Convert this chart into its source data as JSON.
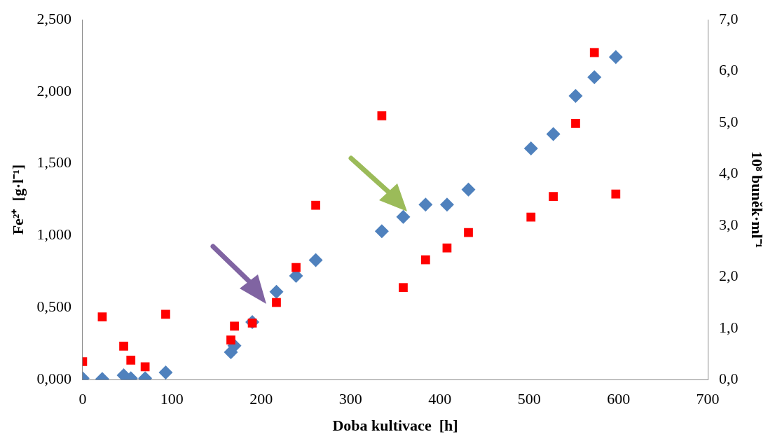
{
  "chart_data": {
    "type": "scatter",
    "xlabel": "Doba kultivace  [h]",
    "ylabel": "Fe²⁺  [g·l⁻¹]",
    "y2label": "10⁸ buněk·ml⁻¹",
    "xlim": [
      0,
      700
    ],
    "xticks": [
      0,
      100,
      200,
      300,
      400,
      500,
      600,
      700
    ],
    "ylim": [
      0,
      2.5
    ],
    "yticks": [
      {
        "value": 0,
        "label": "0,000"
      },
      {
        "value": 0.5,
        "label": "0,500"
      },
      {
        "value": 1,
        "label": "1,000"
      },
      {
        "value": 1.5,
        "label": "1,500"
      },
      {
        "value": 2,
        "label": "2,000"
      },
      {
        "value": 2.5,
        "label": "2,500"
      }
    ],
    "y2lim": [
      0,
      7
    ],
    "y2ticks": [
      {
        "value": 0,
        "label": "0,0"
      },
      {
        "value": 1,
        "label": "1,0"
      },
      {
        "value": 2,
        "label": "2,0"
      },
      {
        "value": 3,
        "label": "3,0"
      },
      {
        "value": 4,
        "label": "4,0"
      },
      {
        "value": 5,
        "label": "5,0"
      },
      {
        "value": 6,
        "label": "6,0"
      },
      {
        "value": 7,
        "label": "7,0"
      }
    ],
    "grid": false,
    "legend": false,
    "series": [
      {
        "color": "#4f81bd",
        "marker": "diamond",
        "x": [
          0,
          22,
          46,
          54,
          70,
          93,
          166,
          170,
          190,
          217,
          239,
          261,
          335,
          359,
          384,
          408,
          432,
          502,
          527,
          552,
          573,
          597
        ],
        "values": [
          0.01,
          0.005,
          0.03,
          0.01,
          0.01,
          0.05,
          0.19,
          0.235,
          0.4,
          0.61,
          0.72,
          0.83,
          1.03,
          1.13,
          1.215,
          1.215,
          1.32,
          1.605,
          1.705,
          1.97,
          2.1,
          2.24
        ]
      },
      {
        "color": "#ff0000",
        "marker": "square",
        "axis": "y2",
        "x": [
          0,
          22,
          46,
          54,
          70,
          93,
          166,
          170,
          190,
          217,
          239,
          261,
          335,
          359,
          384,
          408,
          432,
          502,
          527,
          552,
          573,
          597
        ],
        "values": [
          0.35,
          1.22,
          0.65,
          0.38,
          0.25,
          1.27,
          0.77,
          1.04,
          1.1,
          1.5,
          2.18,
          3.39,
          5.13,
          1.79,
          2.33,
          2.56,
          2.86,
          3.16,
          3.56,
          4.98,
          6.36,
          3.61
        ]
      }
    ]
  }
}
